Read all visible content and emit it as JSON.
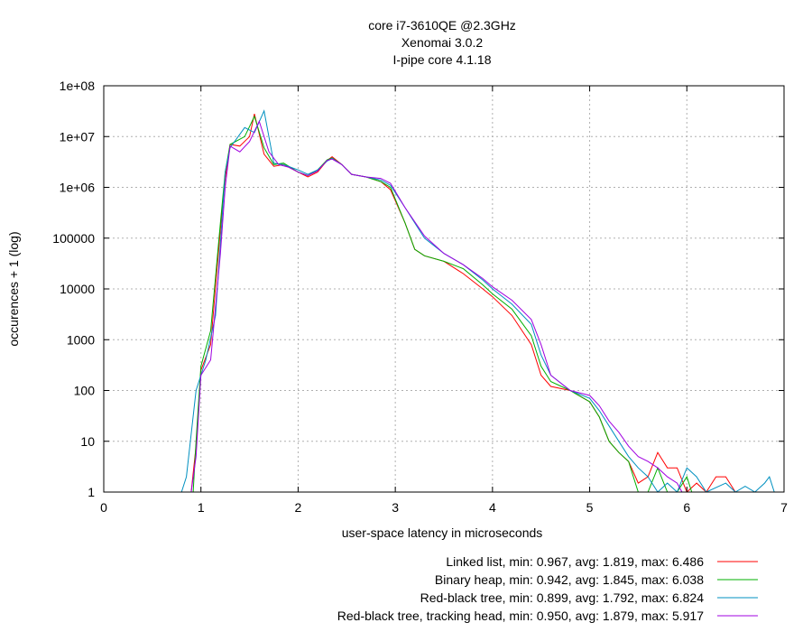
{
  "chart_data": {
    "type": "line",
    "title_lines": [
      "core i7-3610QE @2.3GHz",
      "Xenomai 3.0.2",
      "I-pipe core 4.1.18"
    ],
    "xlabel": "user-space latency in microseconds",
    "ylabel": "occurences + 1 (log)",
    "xlim": [
      0,
      7
    ],
    "ylim": [
      1,
      100000000
    ],
    "y_scale": "log",
    "grid": true,
    "legend_position": "bottom-right",
    "x_ticks": [
      "0",
      "1",
      "2",
      "3",
      "4",
      "5",
      "6",
      "7"
    ],
    "y_ticks": [
      {
        "value": 1,
        "label": "1"
      },
      {
        "value": 10,
        "label": "10"
      },
      {
        "value": 100,
        "label": "100"
      },
      {
        "value": 1000,
        "label": "1000"
      },
      {
        "value": 10000,
        "label": "10000"
      },
      {
        "value": 100000,
        "label": "100000"
      },
      {
        "value": 1000000,
        "label": "1e+06"
      },
      {
        "value": 10000000,
        "label": "1e+07"
      },
      {
        "value": 100000000,
        "label": "1e+08"
      }
    ],
    "series": [
      {
        "name": "Linked list, min: 0.967, avg: 1.819, max: 6.486",
        "color": "#ff0000",
        "points": [
          [
            0.9,
            1
          ],
          [
            0.95,
            8
          ],
          [
            1.0,
            250
          ],
          [
            1.1,
            800
          ],
          [
            1.2,
            150000
          ],
          [
            1.25,
            1500000
          ],
          [
            1.3,
            7000000
          ],
          [
            1.4,
            6500000
          ],
          [
            1.5,
            10000000
          ],
          [
            1.55,
            28000000
          ],
          [
            1.65,
            4500000
          ],
          [
            1.75,
            2600000
          ],
          [
            1.85,
            2800000
          ],
          [
            2.0,
            2000000
          ],
          [
            2.1,
            1600000
          ],
          [
            2.2,
            2000000
          ],
          [
            2.3,
            3400000
          ],
          [
            2.35,
            4000000
          ],
          [
            2.45,
            2800000
          ],
          [
            2.55,
            1800000
          ],
          [
            2.7,
            1600000
          ],
          [
            2.85,
            1300000
          ],
          [
            2.95,
            900000
          ],
          [
            3.1,
            200000
          ],
          [
            3.2,
            60000
          ],
          [
            3.3,
            45000
          ],
          [
            3.5,
            35000
          ],
          [
            3.7,
            20000
          ],
          [
            3.9,
            10000
          ],
          [
            4.0,
            7000
          ],
          [
            4.2,
            3000
          ],
          [
            4.4,
            800
          ],
          [
            4.5,
            200
          ],
          [
            4.6,
            120
          ],
          [
            4.8,
            100
          ],
          [
            5.0,
            60
          ],
          [
            5.1,
            30
          ],
          [
            5.2,
            10
          ],
          [
            5.3,
            6
          ],
          [
            5.4,
            4
          ],
          [
            5.5,
            1.5
          ],
          [
            5.6,
            2
          ],
          [
            5.7,
            6
          ],
          [
            5.8,
            3
          ],
          [
            5.9,
            3
          ],
          [
            6.0,
            1
          ],
          [
            6.1,
            1.5
          ],
          [
            6.2,
            1
          ],
          [
            6.3,
            2
          ],
          [
            6.4,
            2
          ],
          [
            6.5,
            1
          ]
        ]
      },
      {
        "name": "Binary heap, min: 0.942, avg: 1.845, max: 6.038",
        "color": "#00b000",
        "points": [
          [
            0.92,
            1
          ],
          [
            0.95,
            10
          ],
          [
            1.0,
            300
          ],
          [
            1.1,
            1500
          ],
          [
            1.2,
            200000
          ],
          [
            1.25,
            2000000
          ],
          [
            1.3,
            7000000
          ],
          [
            1.45,
            10000000
          ],
          [
            1.55,
            25000000
          ],
          [
            1.65,
            6000000
          ],
          [
            1.75,
            2800000
          ],
          [
            1.85,
            3000000
          ],
          [
            2.0,
            2000000
          ],
          [
            2.1,
            1700000
          ],
          [
            2.2,
            2200000
          ],
          [
            2.3,
            3500000
          ],
          [
            2.35,
            3800000
          ],
          [
            2.45,
            2800000
          ],
          [
            2.55,
            1800000
          ],
          [
            2.7,
            1600000
          ],
          [
            2.85,
            1300000
          ],
          [
            2.95,
            1000000
          ],
          [
            3.1,
            200000
          ],
          [
            3.2,
            60000
          ],
          [
            3.3,
            45000
          ],
          [
            3.5,
            35000
          ],
          [
            3.7,
            25000
          ],
          [
            3.9,
            12000
          ],
          [
            4.0,
            8000
          ],
          [
            4.2,
            4000
          ],
          [
            4.4,
            1200
          ],
          [
            4.5,
            300
          ],
          [
            4.6,
            150
          ],
          [
            4.8,
            100
          ],
          [
            5.0,
            60
          ],
          [
            5.1,
            30
          ],
          [
            5.2,
            10
          ],
          [
            5.3,
            6
          ],
          [
            5.4,
            4
          ],
          [
            5.45,
            2
          ],
          [
            5.5,
            1
          ],
          [
            5.6,
            1
          ],
          [
            5.7,
            3
          ],
          [
            5.8,
            1
          ],
          [
            5.9,
            1
          ],
          [
            6.0,
            2
          ],
          [
            6.05,
            1
          ]
        ]
      },
      {
        "name": "Red-black tree, min: 0.899, avg: 1.792, max: 6.824",
        "color": "#0090c0",
        "points": [
          [
            0.8,
            1
          ],
          [
            0.85,
            2
          ],
          [
            0.95,
            100
          ],
          [
            1.05,
            400
          ],
          [
            1.15,
            3000
          ],
          [
            1.25,
            2000000
          ],
          [
            1.3,
            6000000
          ],
          [
            1.45,
            15000000
          ],
          [
            1.55,
            12000000
          ],
          [
            1.65,
            32000000
          ],
          [
            1.75,
            3000000
          ],
          [
            1.85,
            2800000
          ],
          [
            2.0,
            2200000
          ],
          [
            2.1,
            1800000
          ],
          [
            2.2,
            2200000
          ],
          [
            2.3,
            3300000
          ],
          [
            2.35,
            3700000
          ],
          [
            2.45,
            2800000
          ],
          [
            2.55,
            1800000
          ],
          [
            2.7,
            1600000
          ],
          [
            2.85,
            1400000
          ],
          [
            2.95,
            1100000
          ],
          [
            3.1,
            400000
          ],
          [
            3.3,
            100000
          ],
          [
            3.5,
            50000
          ],
          [
            3.7,
            30000
          ],
          [
            3.9,
            15000
          ],
          [
            4.0,
            10000
          ],
          [
            4.2,
            5000
          ],
          [
            4.4,
            2000
          ],
          [
            4.5,
            500
          ],
          [
            4.6,
            200
          ],
          [
            4.8,
            100
          ],
          [
            5.0,
            70
          ],
          [
            5.1,
            40
          ],
          [
            5.2,
            20
          ],
          [
            5.3,
            10
          ],
          [
            5.4,
            5
          ],
          [
            5.5,
            3
          ],
          [
            5.6,
            2
          ],
          [
            5.7,
            1
          ],
          [
            5.8,
            1.5
          ],
          [
            5.9,
            1
          ],
          [
            6.0,
            3
          ],
          [
            6.1,
            2
          ],
          [
            6.2,
            1
          ],
          [
            6.4,
            1.5
          ],
          [
            6.5,
            1
          ],
          [
            6.6,
            1.3
          ],
          [
            6.7,
            1
          ],
          [
            6.8,
            1.5
          ],
          [
            6.85,
            2
          ],
          [
            6.9,
            1
          ]
        ]
      },
      {
        "name": "Red-black tree, tracking head, min: 0.950, avg: 1.879, max: 5.917",
        "color": "#a000e0",
        "points": [
          [
            0.9,
            1
          ],
          [
            0.95,
            5
          ],
          [
            1.0,
            200
          ],
          [
            1.1,
            400
          ],
          [
            1.2,
            50000
          ],
          [
            1.25,
            1000000
          ],
          [
            1.3,
            6500000
          ],
          [
            1.4,
            5000000
          ],
          [
            1.5,
            8000000
          ],
          [
            1.6,
            20000000
          ],
          [
            1.7,
            5000000
          ],
          [
            1.8,
            2800000
          ],
          [
            1.9,
            2500000
          ],
          [
            2.0,
            2000000
          ],
          [
            2.1,
            1700000
          ],
          [
            2.2,
            2100000
          ],
          [
            2.3,
            3400000
          ],
          [
            2.35,
            3600000
          ],
          [
            2.45,
            2800000
          ],
          [
            2.55,
            1800000
          ],
          [
            2.7,
            1600000
          ],
          [
            2.85,
            1500000
          ],
          [
            2.95,
            1200000
          ],
          [
            3.1,
            400000
          ],
          [
            3.3,
            110000
          ],
          [
            3.5,
            50000
          ],
          [
            3.7,
            30000
          ],
          [
            3.9,
            16000
          ],
          [
            4.0,
            11000
          ],
          [
            4.2,
            6000
          ],
          [
            4.4,
            2500
          ],
          [
            4.5,
            800
          ],
          [
            4.6,
            200
          ],
          [
            4.8,
            100
          ],
          [
            5.0,
            80
          ],
          [
            5.1,
            50
          ],
          [
            5.2,
            25
          ],
          [
            5.3,
            15
          ],
          [
            5.4,
            8
          ],
          [
            5.5,
            5
          ],
          [
            5.6,
            4
          ],
          [
            5.7,
            3
          ],
          [
            5.8,
            2
          ],
          [
            5.9,
            1.5
          ],
          [
            5.95,
            1
          ]
        ]
      }
    ]
  }
}
